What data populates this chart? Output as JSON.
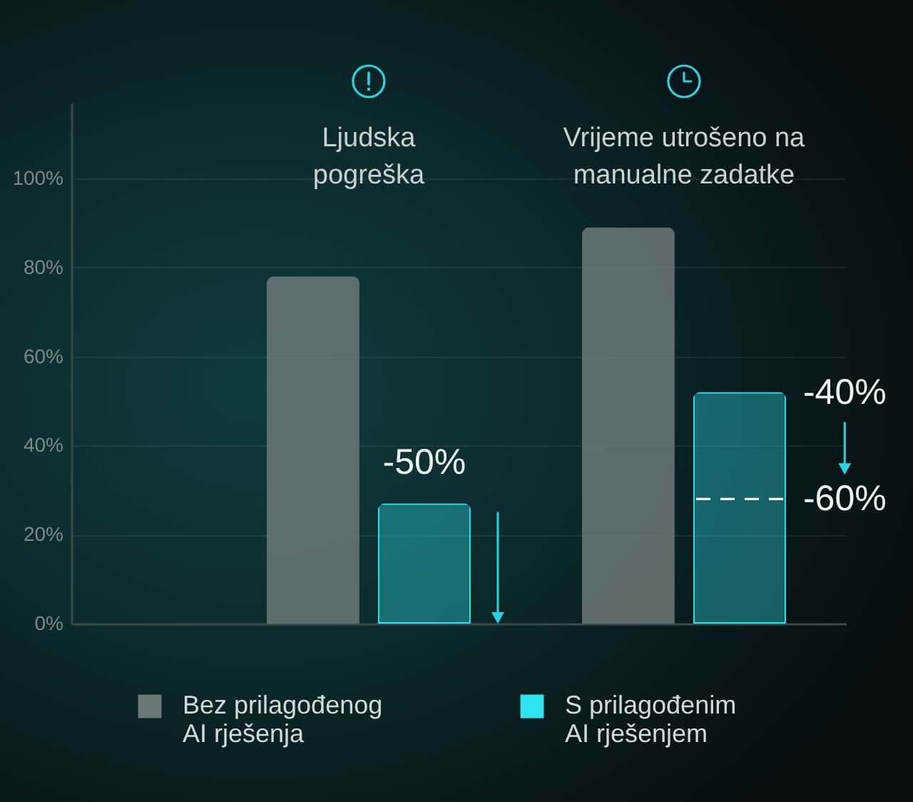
{
  "chart_data": {
    "type": "bar",
    "categories": [
      "Ljudska pogreška",
      "Vrijeme utrošeno na manualne zadatke"
    ],
    "series": [
      {
        "name": "Bez prilagođenog AI rješenja",
        "color": "#6b7878",
        "values": [
          78,
          89
        ]
      },
      {
        "name": "S prilagođenim AI rješenjem",
        "color": "#2fe3ef",
        "values": [
          27,
          52
        ]
      }
    ],
    "ylim": [
      0,
      117
    ],
    "yticks": [
      {
        "value": 0,
        "label": "0%"
      },
      {
        "value": 20,
        "label": "20%"
      },
      {
        "value": 40,
        "label": "40%"
      },
      {
        "value": 60,
        "label": "60%"
      },
      {
        "value": 80,
        "label": "80%"
      },
      {
        "value": 100,
        "label": "100%"
      }
    ],
    "grid": "y",
    "legend": "bottom",
    "ref_lines": [
      {
        "axis": "y",
        "value": 28,
        "color": "#ffffff",
        "line_style": "dashed"
      }
    ],
    "annotations": [
      "-50%",
      "-40%",
      "-60%"
    ]
  }
}
